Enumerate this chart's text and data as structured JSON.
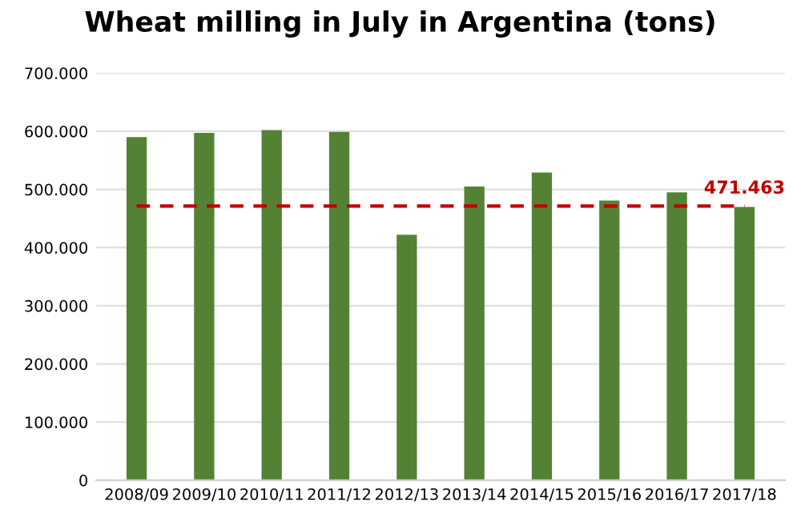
{
  "chart_data": {
    "type": "bar",
    "title": "Wheat milling in July in Argentina (tons)",
    "categories": [
      "2008/09",
      "2009/10",
      "2010/11",
      "2011/12",
      "2012/13",
      "2013/14",
      "2014/15",
      "2015/16",
      "2016/17",
      "2017/18"
    ],
    "values": [
      590000,
      597000,
      602000,
      599000,
      422000,
      505000,
      529000,
      481000,
      495000,
      470000
    ],
    "color": "#548235",
    "ylim": [
      0,
      700000
    ],
    "yticks": [
      0,
      {
        "value": 100000,
        "label": "100.000"
      },
      {
        "value": 200000,
        "label": "200.000"
      },
      {
        "value": 300000,
        "label": "300.000"
      },
      {
        "value": 400000,
        "label": "400.000"
      },
      {
        "value": 500000,
        "label": "500.000"
      },
      {
        "value": 600000,
        "label": "600.000"
      },
      {
        "value": 700000,
        "label": "700.000"
      }
    ],
    "grid": "y",
    "ref_lines": [
      {
        "axis": "y",
        "value": 471463,
        "label": "471.463",
        "color": "#c00000",
        "line_style": "dashed"
      }
    ]
  }
}
